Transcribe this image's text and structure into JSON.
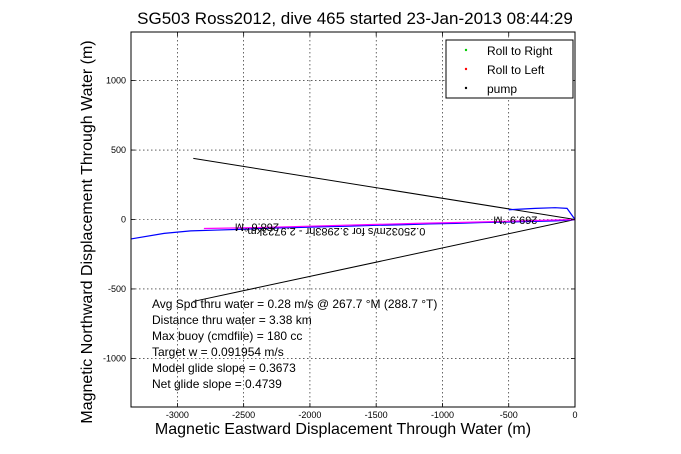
{
  "chart_data": {
    "type": "line",
    "title": "SG503 Ross2012, dive 465 started 23-Jan-2013 08:44:29",
    "xlabel": "Magnetic Eastward Displacement Through Water (m)",
    "ylabel": "Magnetic Northward Displacement Through Water (m)",
    "xlim": [
      -3350,
      0
    ],
    "ylim": [
      -1350,
      1350
    ],
    "xticks": [
      -3000,
      -2500,
      -2000,
      -1500,
      -1000,
      -500,
      0
    ],
    "yticks": [
      -1000,
      -500,
      0,
      500,
      1000
    ],
    "grid": true,
    "legend_position": "top-right",
    "legend": [
      {
        "name": "Roll to Right",
        "color": "#00cc00"
      },
      {
        "name": "Roll to Left",
        "color": "#ff0000"
      },
      {
        "name": "pump",
        "color": "#000000"
      }
    ],
    "series": [
      {
        "color": "#0000ff",
        "x": [
          0,
          -50,
          -150,
          -300,
          -500,
          -700,
          -900,
          -1100,
          -1300,
          -1500,
          -1700,
          -1900,
          -2100,
          -2300,
          -2500,
          -2700,
          -2900,
          -3100,
          -3350
        ],
        "y": [
          0,
          -5,
          -10,
          -14,
          -18,
          -22,
          -28,
          -32,
          -38,
          -42,
          -48,
          -52,
          -58,
          -62,
          -70,
          -76,
          -82,
          -100,
          -140
        ]
      },
      {
        "color": "#0000ff",
        "x": [
          -500,
          -300,
          -150,
          -60,
          0
        ],
        "y": [
          70,
          80,
          85,
          80,
          0
        ]
      },
      {
        "color": "#ff00ff",
        "x": [
          0,
          -400,
          -800,
          -1200,
          -1600,
          -2000,
          -2400,
          -2800
        ],
        "y": [
          0,
          -10,
          -20,
          -28,
          -38,
          -48,
          -58,
          -65
        ]
      }
    ],
    "fan_lines": [
      {
        "x": [
          0,
          -2880
        ],
        "y": [
          0,
          440
        ]
      },
      {
        "x": [
          0,
          -2880
        ],
        "y": [
          0,
          -590
        ]
      }
    ],
    "annotations": [
      {
        "text": "268.6 °M",
        "x": -2400,
        "y": -30
      },
      {
        "text": "0.25032m/s for 3.2983hr - 2.9723km",
        "x": -1800,
        "y": -60
      },
      {
        "text": "269.9 °M",
        "x": -450,
        "y": 20
      }
    ],
    "stats": [
      "Avg Spd thru water =  0.28 m/s @ 267.7   °M (288.7 °T)",
      "Distance thru water =  3.38 km",
      "Max buoy (cmdfile) = 180 cc",
      "Target w = 0.091954 m/s",
      "Model glide slope = 0.3673",
      "Net glide slope = 0.4739"
    ]
  }
}
